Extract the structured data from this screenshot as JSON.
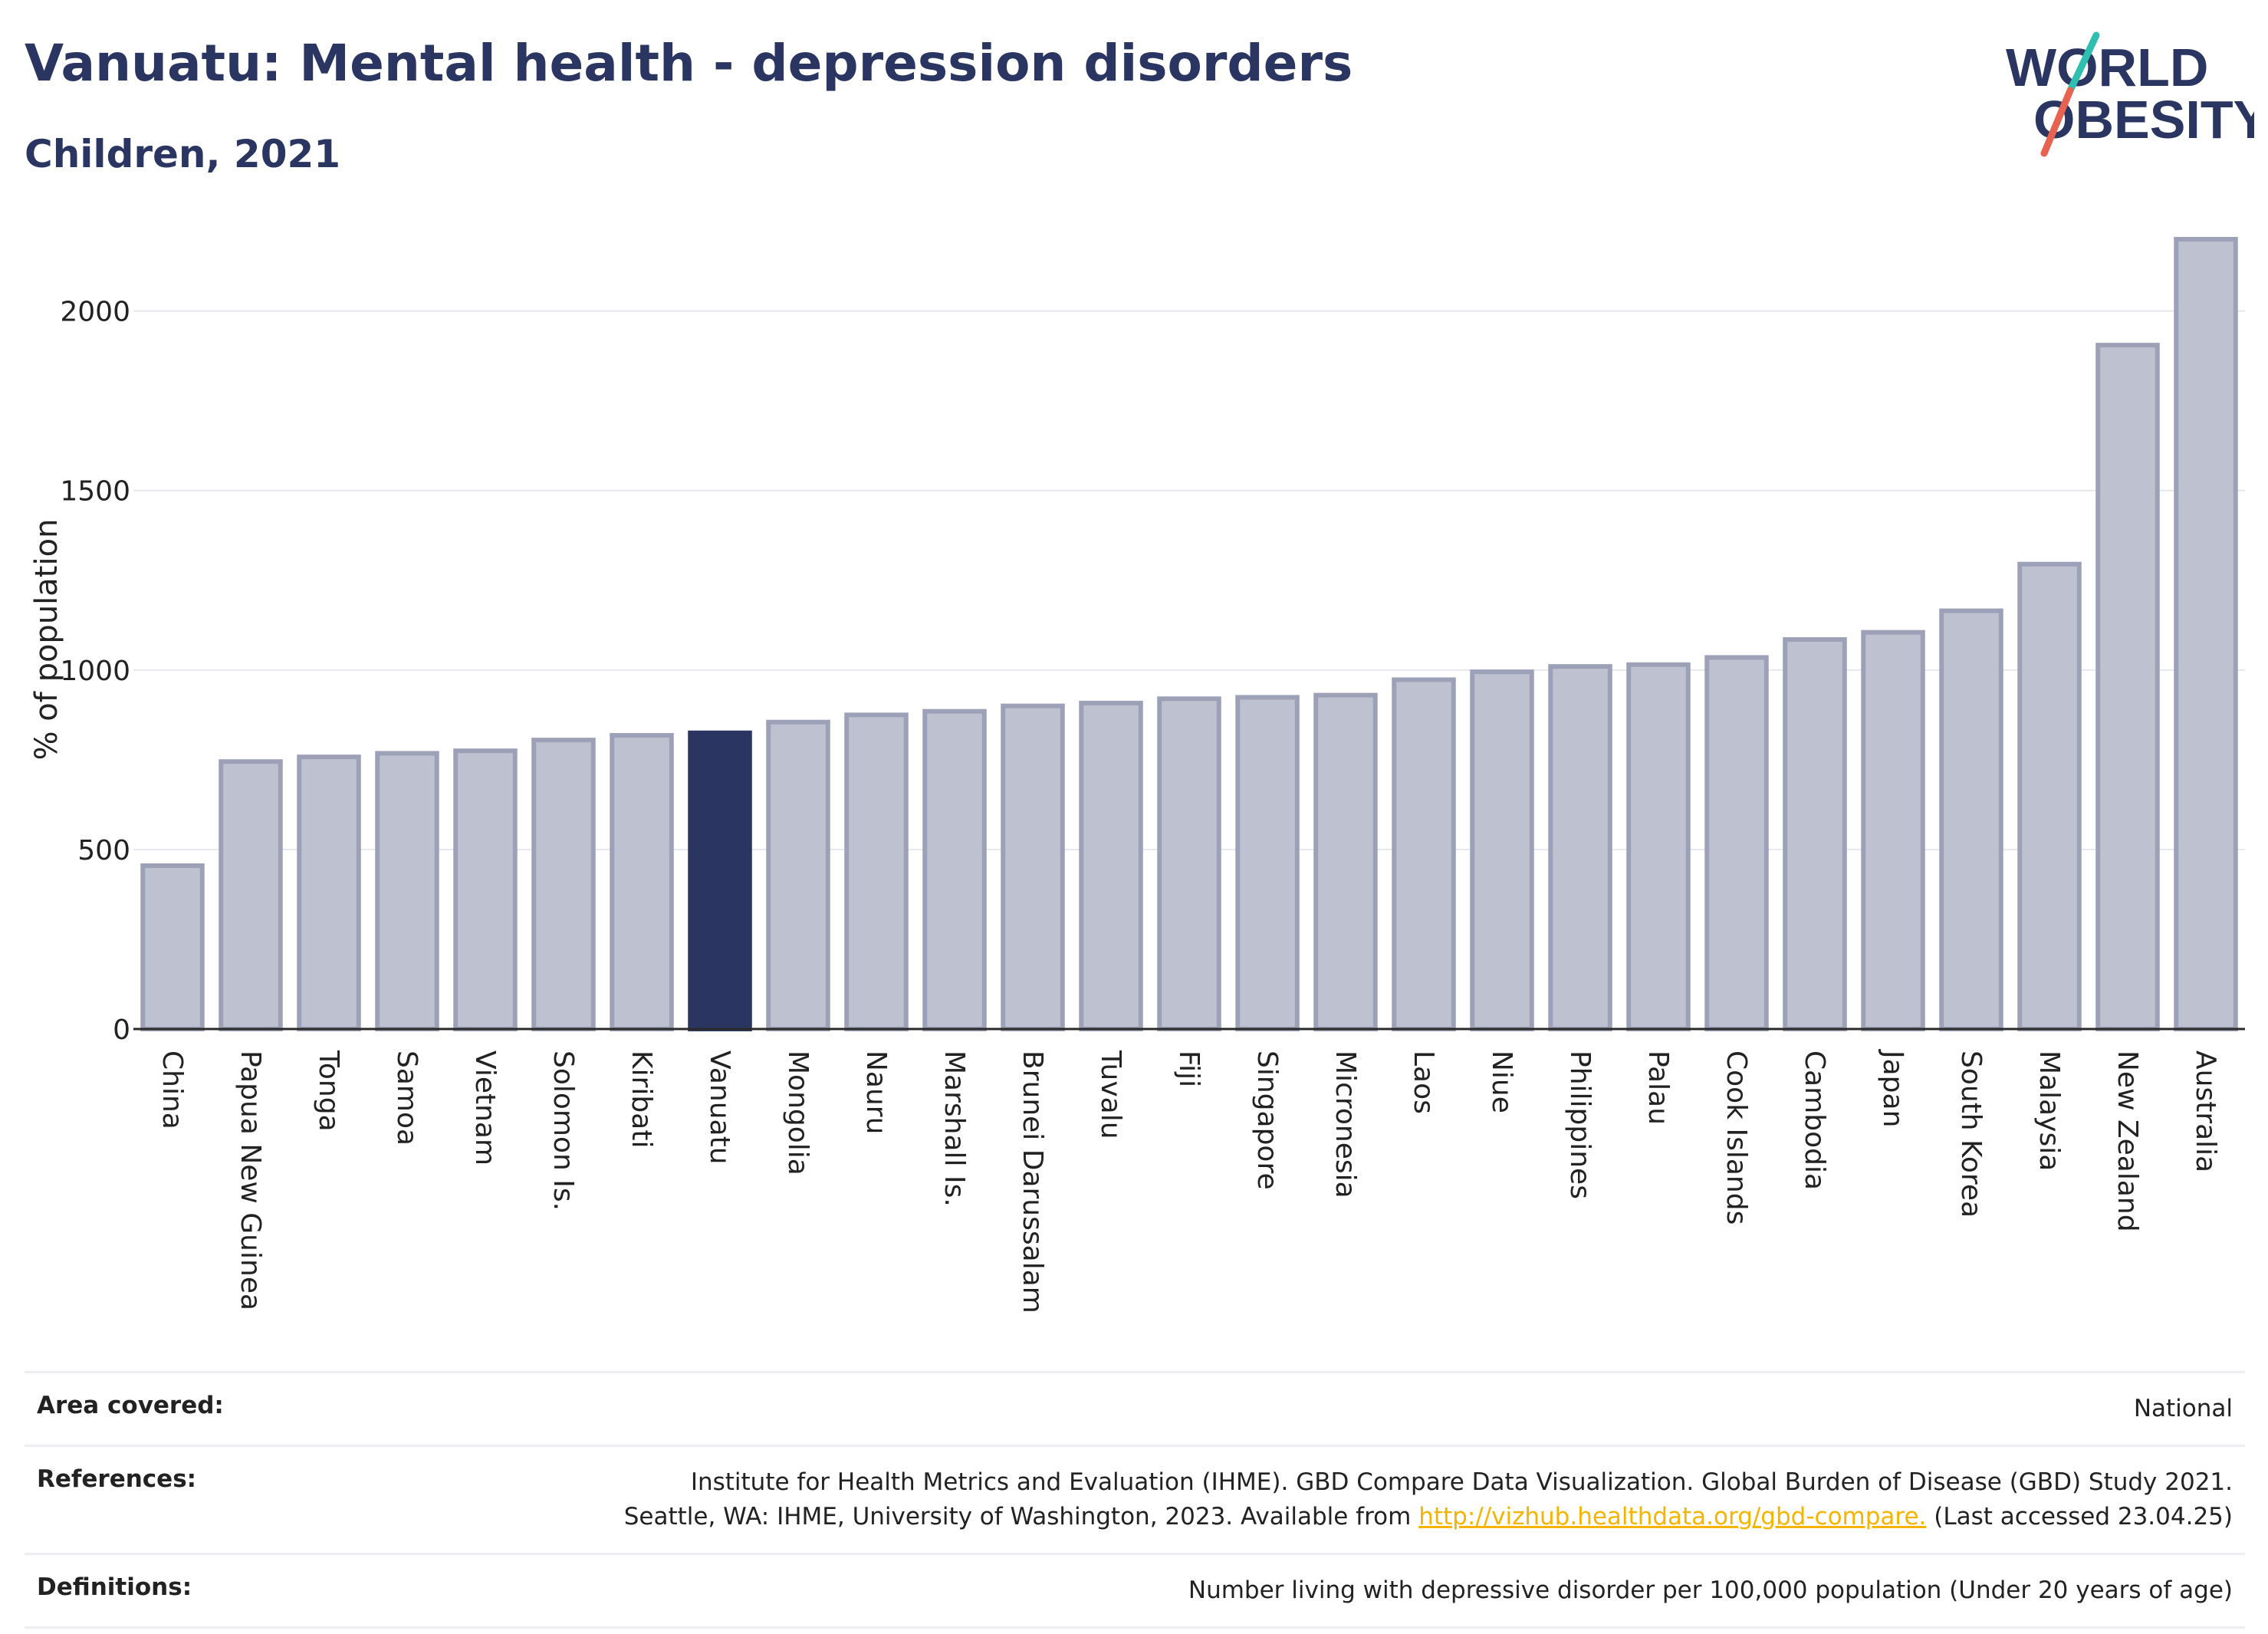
{
  "header": {
    "title": "Vanuatu: Mental health - depression disorders",
    "subtitle": "Children, 2021"
  },
  "logo": {
    "line1": "WORLD",
    "line2": "OBESITY",
    "accent_colors": [
      "#2ebfb0",
      "#e8634f"
    ]
  },
  "chart_data": {
    "type": "bar",
    "title": "Vanuatu: Mental health - depression disorders",
    "subtitle": "Children, 2021",
    "xlabel": "",
    "ylabel": "% of population",
    "ylim": [
      0,
      2200
    ],
    "yticks": [
      0,
      500,
      1000,
      1500,
      2000
    ],
    "grid": true,
    "highlight": "Vanuatu",
    "colors": {
      "bar": "#bec2d0",
      "bar_border": "#9ca1b8",
      "highlight": "#2a3561"
    },
    "categories": [
      "China",
      "Papua New Guinea",
      "Tonga",
      "Samoa",
      "Vietnam",
      "Solomon Is.",
      "Kiribati",
      "Vanuatu",
      "Mongolia",
      "Nauru",
      "Marshall Is.",
      "Brunei Darussalam",
      "Tuvalu",
      "Fiji",
      "Singapore",
      "Micronesia",
      "Laos",
      "Niue",
      "Philippines",
      "Palau",
      "Cook Islands",
      "Cambodia",
      "Japan",
      "South Korea",
      "Malaysia",
      "New Zealand",
      "Australia"
    ],
    "values": [
      455,
      745,
      758,
      768,
      775,
      805,
      818,
      825,
      855,
      875,
      885,
      900,
      908,
      920,
      924,
      930,
      973,
      995,
      1010,
      1015,
      1035,
      1085,
      1105,
      1165,
      1295,
      1905,
      2200
    ]
  },
  "info": {
    "rows": [
      {
        "key": "Area covered:",
        "value": "National"
      },
      {
        "key": "References:",
        "line1": "Institute for Health Metrics and Evaluation (IHME). GBD Compare Data Visualization. Global Burden of Disease (GBD) Study 2021.",
        "line2_pre": "Seattle, WA: IHME, University of Washington, 2023. Available from ",
        "link": "http://vizhub.healthdata.org/gbd-compare.",
        "line2_post": " (Last accessed 23.04.25)"
      },
      {
        "key": "Definitions:",
        "value": "Number living with depressive disorder per 100,000 population (Under 20 years of age)"
      }
    ]
  }
}
